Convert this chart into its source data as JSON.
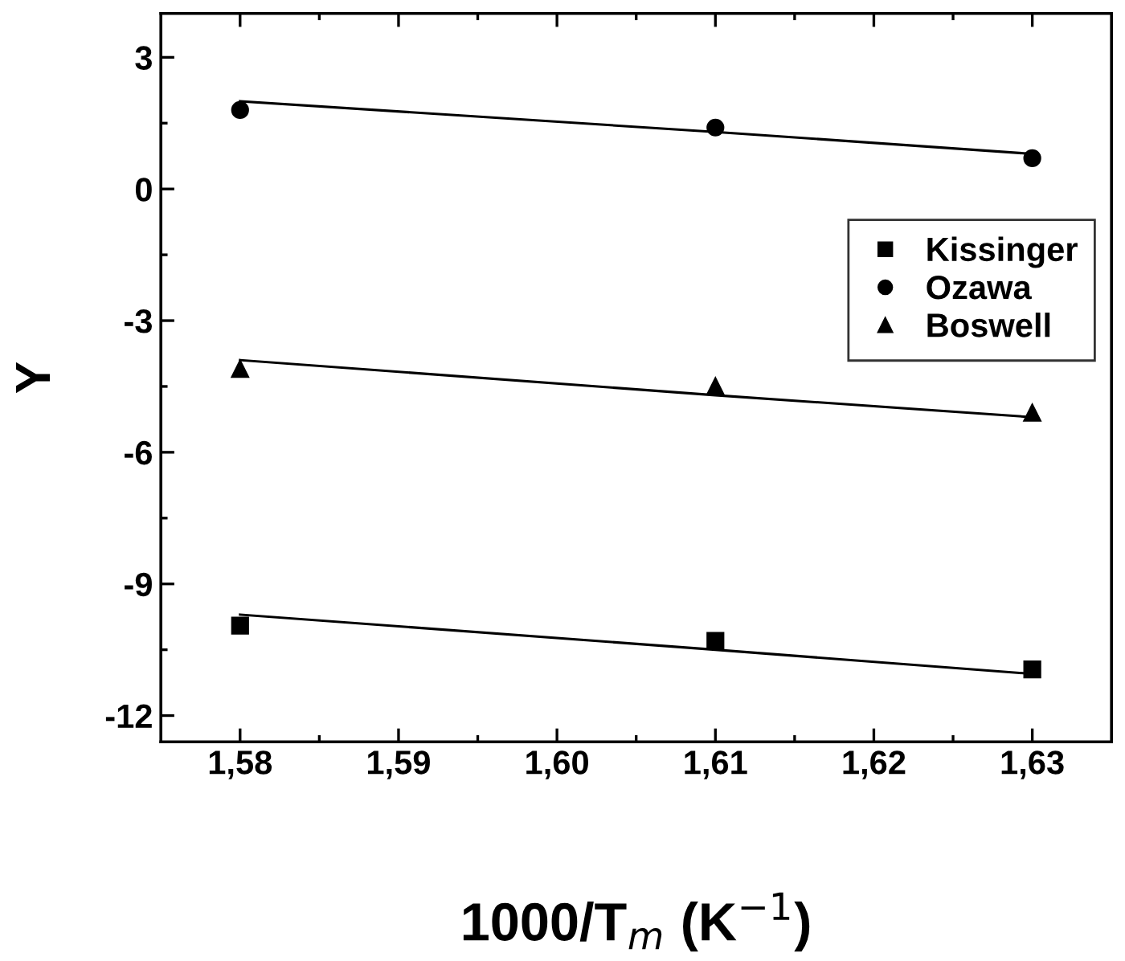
{
  "chart_data": {
    "type": "scatter",
    "xlabel": "1000/T$_{m}$ (K$^{−1}$)",
    "ylabel": "Y",
    "x": [
      1.58,
      1.61,
      1.63
    ],
    "series": [
      {
        "name": "Kissinger",
        "color": "#000000",
        "marker": "square",
        "values": [
          -9.95,
          -10.3,
          -10.95
        ]
      },
      {
        "name": "Ozawa",
        "color": "#000000",
        "marker": "circle",
        "values": [
          1.8,
          1.4,
          0.7
        ]
      },
      {
        "name": "Boswell",
        "color": "#000000",
        "marker": "triangle",
        "values": [
          -4.1,
          -4.5,
          -5.1
        ]
      },
      {
        "type": "line",
        "color": "#000000",
        "values": [
          -9.7,
          -10.5,
          -11.05
        ]
      },
      {
        "type": "line",
        "color": "#000000",
        "values": [
          2.0,
          1.3,
          0.8
        ]
      },
      {
        "type": "line",
        "color": "#000000",
        "values": [
          -3.9,
          -4.7,
          -5.2
        ]
      }
    ],
    "xlim": [
      1.575,
      1.635
    ],
    "ylim": [
      -12.6,
      4.0
    ],
    "xticks": [
      {
        "value": 1.58,
        "label": "1,58"
      },
      {
        "value": 1.59,
        "label": "1,59"
      },
      {
        "value": 1.6,
        "label": "1,60"
      },
      {
        "value": 1.61,
        "label": "1,61"
      },
      {
        "value": 1.62,
        "label": "1,62"
      },
      {
        "value": 1.63,
        "label": "1,63"
      }
    ],
    "yticks": [
      -12,
      -9,
      -6,
      -3,
      0,
      3
    ],
    "grid": false,
    "legend": "right"
  }
}
